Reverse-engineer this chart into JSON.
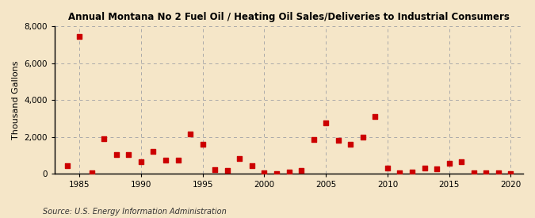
{
  "title": "Annual Montana No 2 Fuel Oil / Heating Oil Sales/Deliveries to Industrial Consumers",
  "ylabel": "Thousand Gallons",
  "source": "Source: U.S. Energy Information Administration",
  "background_color": "#f5e6c8",
  "plot_background_color": "#f5e6c8",
  "marker_color": "#cc0000",
  "marker_size": 4,
  "marker_style": "s",
  "xlim": [
    1983,
    2021
  ],
  "ylim": [
    0,
    8000
  ],
  "yticks": [
    0,
    2000,
    4000,
    6000,
    8000
  ],
  "xticks": [
    1985,
    1990,
    1995,
    2000,
    2005,
    2010,
    2015,
    2020
  ],
  "years": [
    1984,
    1985,
    1986,
    1987,
    1988,
    1989,
    1990,
    1991,
    1992,
    1993,
    1994,
    1995,
    1996,
    1997,
    1998,
    1999,
    2000,
    2001,
    2002,
    2003,
    2004,
    2005,
    2006,
    2007,
    2008,
    2009,
    2010,
    2011,
    2012,
    2013,
    2014,
    2015,
    2016,
    2017,
    2018,
    2019,
    2020
  ],
  "values": [
    440,
    7450,
    30,
    1900,
    1050,
    1050,
    650,
    1200,
    750,
    750,
    2150,
    1600,
    200,
    180,
    800,
    450,
    30,
    20,
    80,
    150,
    1850,
    2750,
    1800,
    1600,
    1980,
    3100,
    280,
    30,
    80,
    300,
    250,
    550,
    650,
    50,
    30,
    30,
    20
  ]
}
